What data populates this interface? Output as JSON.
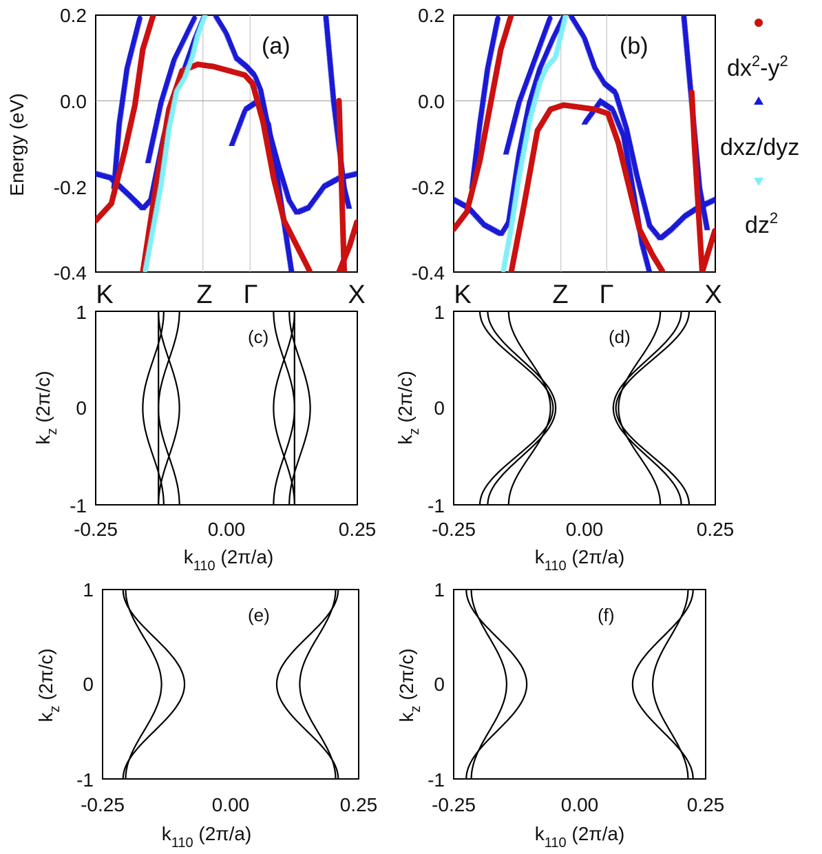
{
  "figure": {
    "legend": [
      {
        "key": "dx2y2",
        "base": "dx",
        "sup1": "2",
        "mid": "-y",
        "sup2": "2",
        "color": "#cc1111",
        "marker": "circle"
      },
      {
        "key": "dxz",
        "base": "dxz/dyz",
        "color": "#1a1ad6",
        "marker": "triangle-up"
      },
      {
        "key": "dz2",
        "base": "dz",
        "sup1": "2",
        "color": "#80f0f8",
        "marker": "triangle-down"
      }
    ]
  },
  "chart_data": [
    {
      "type": "scatter",
      "panel": "(a)",
      "ylabel": "Energy (eV)",
      "ylim": [
        -0.4,
        0.2
      ],
      "yticks": [
        "-0.4",
        "-0.2",
        "0.0",
        "0.2"
      ],
      "xlabels": [
        "K",
        "Z",
        "Γ",
        "X"
      ],
      "series": [
        {
          "name": "dxz/dyz",
          "orbital": "dxz",
          "points": [
            [
              0,
              -0.17
            ],
            [
              0.06,
              -0.18
            ],
            [
              0.13,
              -0.22
            ],
            [
              0.18,
              -0.25
            ],
            [
              0.21,
              -0.23
            ],
            [
              0.26,
              -0.08
            ],
            [
              0.3,
              0.02
            ],
            [
              0.34,
              0.08
            ],
            [
              0.38,
              0.15
            ],
            [
              0.42,
              0.21
            ]
          ]
        },
        {
          "name": "dxz/dyz",
          "orbital": "dxz",
          "points": [
            [
              0.46,
              0.2
            ],
            [
              0.5,
              0.16
            ],
            [
              0.54,
              0.1
            ],
            [
              0.58,
              0.08
            ],
            [
              0.61,
              0.06
            ],
            [
              0.63,
              0.03
            ],
            [
              0.66,
              -0.06
            ],
            [
              0.7,
              -0.15
            ],
            [
              0.74,
              -0.23
            ],
            [
              0.77,
              -0.26
            ],
            [
              0.81,
              -0.25
            ],
            [
              0.87,
              -0.2
            ],
            [
              0.93,
              -0.18
            ],
            [
              1.0,
              -0.17
            ]
          ]
        },
        {
          "name": "dxz/dyz",
          "orbital": "dxz",
          "points": [
            [
              0.07,
              -0.2
            ],
            [
              0.09,
              -0.05
            ],
            [
              0.12,
              0.08
            ],
            [
              0.17,
              0.2
            ]
          ]
        },
        {
          "name": "dxz/dyz",
          "orbital": "dxz",
          "points": [
            [
              0.2,
              -0.14
            ],
            [
              0.25,
              0.0
            ],
            [
              0.3,
              0.1
            ],
            [
              0.38,
              0.2
            ]
          ]
        },
        {
          "name": "dxz/dyz",
          "orbital": "dxz",
          "points": [
            [
              0.52,
              -0.1
            ],
            [
              0.57,
              -0.02
            ],
            [
              0.62,
              0.0
            ],
            [
              0.66,
              -0.05
            ],
            [
              0.7,
              -0.2
            ],
            [
              0.73,
              -0.32
            ],
            [
              0.75,
              -0.4
            ]
          ]
        },
        {
          "name": "dxz/dyz",
          "orbital": "dxz",
          "points": [
            [
              0.88,
              0.2
            ],
            [
              0.91,
              0.0
            ],
            [
              0.95,
              -0.2
            ],
            [
              0.97,
              -0.25
            ]
          ]
        },
        {
          "name": "dx2-y2",
          "orbital": "dx2y2",
          "points": [
            [
              0.0,
              -0.28
            ],
            [
              0.06,
              -0.24
            ],
            [
              0.11,
              -0.12
            ],
            [
              0.15,
              -0.01
            ],
            [
              0.18,
              0.12
            ],
            [
              0.23,
              0.22
            ]
          ]
        },
        {
          "name": "dx2-y2",
          "orbital": "dx2y2",
          "points": [
            [
              0.18,
              -0.4
            ],
            [
              0.23,
              -0.2
            ],
            [
              0.28,
              -0.02
            ],
            [
              0.33,
              0.07
            ],
            [
              0.39,
              0.085
            ],
            [
              0.45,
              0.08
            ],
            [
              0.51,
              0.07
            ],
            [
              0.57,
              0.06
            ],
            [
              0.6,
              0.04
            ],
            [
              0.64,
              -0.05
            ],
            [
              0.68,
              -0.18
            ],
            [
              0.72,
              -0.28
            ],
            [
              0.77,
              -0.34
            ],
            [
              0.82,
              -0.4
            ]
          ]
        },
        {
          "name": "dx2-y2",
          "orbital": "dx2y2",
          "points": [
            [
              0.93,
              -0.4
            ],
            [
              0.97,
              -0.34
            ],
            [
              1.0,
              -0.28
            ]
          ]
        },
        {
          "name": "dx2-y2",
          "orbital": "dx2y2",
          "points": [
            [
              0.93,
              0.0
            ],
            [
              0.935,
              -0.1
            ],
            [
              0.94,
              -0.2
            ],
            [
              0.945,
              -0.3
            ],
            [
              0.95,
              -0.4
            ]
          ]
        },
        {
          "name": "dz2",
          "orbital": "dz2",
          "points": [
            [
              0.19,
              -0.4
            ],
            [
              0.22,
              -0.3
            ],
            [
              0.25,
              -0.2
            ],
            [
              0.28,
              -0.07
            ],
            [
              0.31,
              0.02
            ],
            [
              0.34,
              0.05
            ],
            [
              0.37,
              0.1
            ],
            [
              0.39,
              0.15
            ],
            [
              0.42,
              0.2
            ]
          ]
        }
      ]
    },
    {
      "type": "scatter",
      "panel": "(b)",
      "ylabel": "",
      "ylim": [
        -0.4,
        0.2
      ],
      "yticks": [
        "-0.4",
        "-0.2",
        "0.0",
        "0.2"
      ],
      "xlabels": [
        "K",
        "Z",
        "Γ",
        "X"
      ],
      "series": [
        {
          "name": "dxz/dyz",
          "orbital": "dxz",
          "points": [
            [
              0,
              -0.23
            ],
            [
              0.06,
              -0.25
            ],
            [
              0.12,
              -0.29
            ],
            [
              0.18,
              -0.31
            ],
            [
              0.21,
              -0.28
            ],
            [
              0.25,
              -0.12
            ],
            [
              0.29,
              0.0
            ],
            [
              0.33,
              0.08
            ],
            [
              0.38,
              0.15
            ],
            [
              0.42,
              0.2
            ]
          ]
        },
        {
          "name": "dxz/dyz",
          "orbital": "dxz",
          "points": [
            [
              0.45,
              0.2
            ],
            [
              0.5,
              0.15
            ],
            [
              0.54,
              0.08
            ],
            [
              0.58,
              0.04
            ],
            [
              0.62,
              0.02
            ],
            [
              0.66,
              -0.06
            ],
            [
              0.7,
              -0.17
            ],
            [
              0.75,
              -0.29
            ],
            [
              0.79,
              -0.32
            ],
            [
              0.83,
              -0.3
            ],
            [
              0.88,
              -0.27
            ],
            [
              0.93,
              -0.25
            ],
            [
              1.0,
              -0.23
            ]
          ]
        },
        {
          "name": "dxz/dyz",
          "orbital": "dxz",
          "points": [
            [
              0.07,
              -0.2
            ],
            [
              0.1,
              -0.05
            ],
            [
              0.13,
              0.08
            ],
            [
              0.17,
              0.2
            ]
          ]
        },
        {
          "name": "dxz/dyz",
          "orbital": "dxz",
          "points": [
            [
              0.2,
              -0.12
            ],
            [
              0.25,
              0.0
            ],
            [
              0.31,
              0.1
            ],
            [
              0.37,
              0.2
            ]
          ]
        },
        {
          "name": "dxz/dyz",
          "orbital": "dxz",
          "points": [
            [
              0.5,
              -0.05
            ],
            [
              0.56,
              0.0
            ],
            [
              0.61,
              -0.02
            ],
            [
              0.65,
              -0.08
            ],
            [
              0.69,
              -0.22
            ],
            [
              0.72,
              -0.33
            ],
            [
              0.75,
              -0.4
            ]
          ]
        },
        {
          "name": "dxz/dyz",
          "orbital": "dxz",
          "points": [
            [
              0.88,
              0.2
            ],
            [
              0.91,
              0.0
            ],
            [
              0.94,
              -0.2
            ],
            [
              0.97,
              -0.3
            ]
          ]
        },
        {
          "name": "dx2-y2",
          "orbital": "dx2y2",
          "points": [
            [
              0.0,
              -0.3
            ],
            [
              0.05,
              -0.26
            ],
            [
              0.1,
              -0.14
            ],
            [
              0.14,
              -0.01
            ],
            [
              0.18,
              0.12
            ],
            [
              0.23,
              0.22
            ]
          ]
        },
        {
          "name": "dx2-y2",
          "orbital": "dx2y2",
          "points": [
            [
              0.22,
              -0.4
            ],
            [
              0.27,
              -0.24
            ],
            [
              0.32,
              -0.07
            ],
            [
              0.37,
              -0.02
            ],
            [
              0.42,
              -0.01
            ],
            [
              0.48,
              -0.015
            ],
            [
              0.54,
              -0.02
            ],
            [
              0.59,
              -0.03
            ],
            [
              0.63,
              -0.1
            ],
            [
              0.67,
              -0.2
            ],
            [
              0.71,
              -0.3
            ],
            [
              0.76,
              -0.36
            ],
            [
              0.8,
              -0.4
            ]
          ]
        },
        {
          "name": "dx2-y2",
          "orbital": "dx2y2",
          "points": [
            [
              0.95,
              -0.4
            ],
            [
              0.98,
              -0.34
            ],
            [
              1.0,
              -0.3
            ]
          ]
        },
        {
          "name": "dx2-y2",
          "orbital": "dx2y2",
          "points": [
            [
              0.91,
              0.02
            ],
            [
              0.92,
              -0.1
            ],
            [
              0.93,
              -0.2
            ],
            [
              0.94,
              -0.3
            ],
            [
              0.95,
              -0.4
            ]
          ]
        },
        {
          "name": "dz2",
          "orbital": "dz2",
          "points": [
            [
              0.19,
              -0.4
            ],
            [
              0.22,
              -0.3
            ],
            [
              0.25,
              -0.18
            ],
            [
              0.29,
              -0.05
            ],
            [
              0.33,
              0.04
            ],
            [
              0.36,
              0.08
            ],
            [
              0.39,
              0.1
            ],
            [
              0.41,
              0.15
            ],
            [
              0.43,
              0.2
            ]
          ]
        }
      ]
    },
    {
      "type": "line",
      "panel": "(c)",
      "xlabel_base": "k",
      "xlabel_sub": "110",
      "xlabel_rest": " (2π/a)",
      "ylabel_base": "k",
      "ylabel_sub": "z",
      "ylabel_rest": " (2π/c)",
      "xlim": [
        -0.25,
        0.25
      ],
      "ylim": [
        -1,
        1
      ],
      "xticks": [
        "-0.25",
        "0.00",
        "0.25"
      ],
      "yticks": [
        "-1",
        "0",
        "1"
      ],
      "curves": [
        {
          "a": 0.14,
          "b": 0.02,
          "mode": "cos"
        },
        {
          "a": 0.11,
          "b": 0.02,
          "mode": "cos"
        },
        {
          "a": 0.11,
          "b": -0.02,
          "mode": "cos"
        },
        {
          "a": 0.13,
          "b": 0.0,
          "mode": "cos"
        }
      ]
    },
    {
      "type": "line",
      "panel": "(d)",
      "xlabel_base": "k",
      "xlabel_sub": "110",
      "xlabel_rest": " (2π/a)",
      "ylabel_base": "k",
      "ylabel_sub": "z",
      "ylabel_rest": " (2π/c)",
      "xlim": [
        -0.25,
        0.25
      ],
      "ylim": [
        -1,
        1
      ],
      "xticks": [
        "-0.25",
        "0.00",
        "0.25"
      ],
      "yticks": [
        "-1",
        "0",
        "1"
      ],
      "curves": [
        {
          "a": 0.12,
          "b": -0.065,
          "mode": "cos"
        },
        {
          "a": 0.105,
          "b": -0.04,
          "mode": "cos"
        },
        {
          "a": 0.13,
          "b": -0.07,
          "mode": "cos"
        }
      ]
    },
    {
      "type": "line",
      "panel": "(e)",
      "xlabel_base": "k",
      "xlabel_sub": "110",
      "xlabel_rest": " (2π/a)",
      "ylabel_base": "k",
      "ylabel_sub": "z",
      "ylabel_rest": " (2π/c)",
      "xlim": [
        -0.25,
        0.25
      ],
      "ylim": [
        -1,
        1
      ],
      "xticks": [
        "-0.25",
        "0.00",
        "0.25"
      ],
      "yticks": [
        "-1",
        "0",
        "1"
      ],
      "curves": [
        {
          "a": 0.15,
          "b": -0.06,
          "mode": "cos"
        },
        {
          "a": 0.17,
          "b": -0.035,
          "mode": "cos"
        }
      ]
    },
    {
      "type": "line",
      "panel": "(f)",
      "xlabel_base": "k",
      "xlabel_sub": "110",
      "xlabel_rest": " (2π/a)",
      "ylabel_base": "k",
      "ylabel_sub": "z",
      "ylabel_rest": " (2π/c)",
      "xlim": [
        -0.25,
        0.25
      ],
      "ylim": [
        -1,
        1
      ],
      "xticks": [
        "-0.25",
        "0.00",
        "0.25"
      ],
      "yticks": [
        "-1",
        "0",
        "1"
      ],
      "curves": [
        {
          "a": 0.165,
          "b": -0.06,
          "mode": "cos"
        },
        {
          "a": 0.18,
          "b": -0.035,
          "mode": "cos"
        }
      ]
    }
  ]
}
